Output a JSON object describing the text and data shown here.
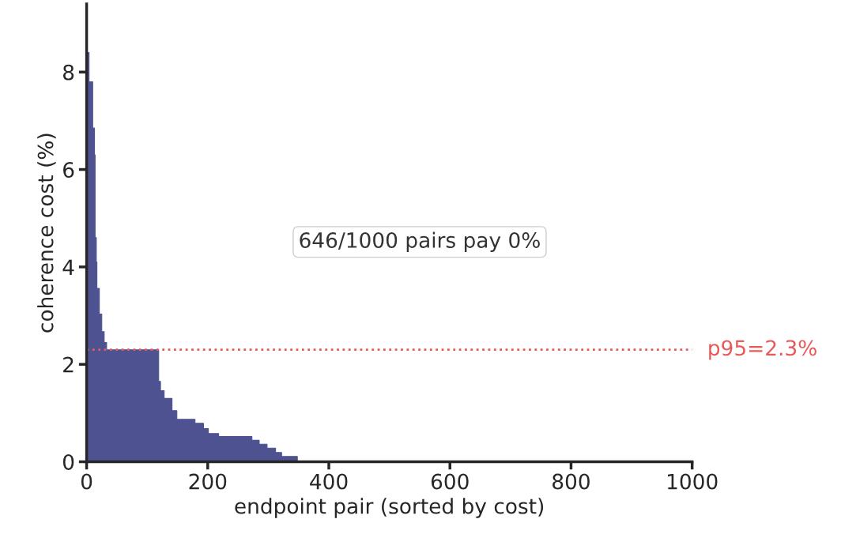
{
  "chart_data": {
    "type": "step",
    "xlabel": "endpoint pair (sorted by cost)",
    "ylabel": "coherence cost (%)",
    "xlim": [
      0,
      1000
    ],
    "xticks": [
      0,
      200,
      400,
      600,
      800,
      1000
    ],
    "ylim": [
      0,
      9.4
    ],
    "yticks": [
      0,
      2,
      4,
      6,
      8
    ],
    "grid": false,
    "legend": false,
    "series": [
      {
        "color": "#4e5290",
        "x": [
          0,
          4,
          10,
          13,
          14,
          16,
          17,
          21,
          25,
          29,
          33,
          119,
          122,
          128,
          141,
          149,
          179,
          193,
          201,
          218,
          273,
          285,
          298,
          312,
          322,
          348
        ],
        "values": [
          8.4,
          7.8,
          6.85,
          6.3,
          4.6,
          4.1,
          3.56,
          3.03,
          2.67,
          2.45,
          2.3,
          1.65,
          1.46,
          1.3,
          1.05,
          0.87,
          0.79,
          0.68,
          0.58,
          0.52,
          0.44,
          0.36,
          0.28,
          0.19,
          0.11,
          0
        ],
        "type": "area"
      }
    ],
    "ref_lines": [
      {
        "axis": "y",
        "value": 2.3,
        "label": "p95=2.3%",
        "color": "#e8595a",
        "line_style": "dotted"
      }
    ],
    "annotations": [
      "646/1000 pairs pay 0%"
    ]
  }
}
